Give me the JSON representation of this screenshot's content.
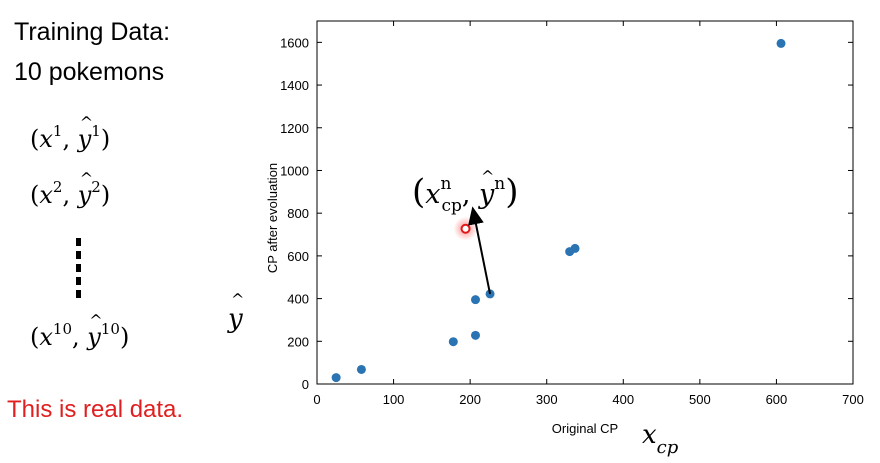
{
  "left": {
    "heading_line1": "Training Data:",
    "heading_line2": "10 pokemons",
    "pairs": [
      {
        "sup_x": "1",
        "sup_y": "1"
      },
      {
        "sup_x": "2",
        "sup_y": "2"
      },
      {
        "sup_x": "10",
        "sup_y": "10"
      }
    ],
    "note": "This is real data.",
    "note_color": "#e02020"
  },
  "annotations": {
    "y_hat": "y",
    "x_cp_base": "x",
    "x_cp_sub": "cp",
    "callout_x": "x",
    "callout_x_sub": "cp",
    "callout_x_sup": "n",
    "callout_y": "y",
    "callout_y_sup": "n"
  },
  "chart_data": {
    "type": "scatter",
    "xlabel": "Original CP",
    "ylabel": "CP after evoluation",
    "xlim": [
      0,
      700
    ],
    "ylim": [
      0,
      1700
    ],
    "xticks": [
      0,
      100,
      200,
      300,
      400,
      500,
      600,
      700
    ],
    "yticks": [
      0,
      200,
      400,
      600,
      800,
      1000,
      1200,
      1400,
      1600
    ],
    "grid": false,
    "point_color": "#2a74b4",
    "highlight_color": "#e01818",
    "points": [
      {
        "x": 25,
        "y": 30
      },
      {
        "x": 58,
        "y": 68
      },
      {
        "x": 178,
        "y": 198
      },
      {
        "x": 207,
        "y": 228
      },
      {
        "x": 207,
        "y": 395
      },
      {
        "x": 226,
        "y": 422
      },
      {
        "x": 330,
        "y": 620
      },
      {
        "x": 337,
        "y": 635
      },
      {
        "x": 606,
        "y": 1595
      }
    ],
    "highlighted_point": {
      "x": 194,
      "y": 727
    },
    "arrow": {
      "from": {
        "x": 226,
        "y": 422
      },
      "to": {
        "x": 205,
        "y": 795
      }
    }
  }
}
